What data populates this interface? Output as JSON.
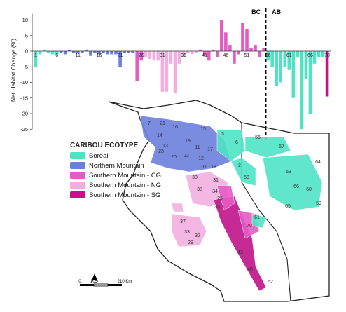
{
  "chart_data": {
    "type": "bar",
    "ylabel": "Net Habitat Change (%)",
    "ylim": [
      -25,
      12
    ],
    "yticks": [
      "10",
      "5",
      "0",
      "-5",
      "-10",
      "-15",
      "-20",
      "-25"
    ],
    "xtick_labels": [
      "1",
      "6",
      "11",
      "16",
      "21",
      "26",
      "31",
      "36",
      "41",
      "46",
      "51",
      "56",
      "61",
      "66",
      "70"
    ],
    "divider_labels": {
      "left": "BC",
      "right": "AB"
    },
    "categories": [
      1,
      2,
      3,
      4,
      5,
      6,
      7,
      8,
      9,
      10,
      11,
      12,
      13,
      14,
      15,
      16,
      17,
      18,
      19,
      20,
      21,
      22,
      23,
      24,
      25,
      26,
      27,
      28,
      29,
      30,
      31,
      32,
      33,
      34,
      35,
      36,
      37,
      38,
      39,
      40,
      41,
      42,
      43,
      44,
      45,
      46,
      47,
      48,
      49,
      50,
      51,
      52,
      53,
      54,
      55,
      56,
      57,
      58,
      59,
      60,
      61,
      62,
      63,
      64,
      65,
      66,
      67,
      68,
      69,
      70
    ],
    "values": [
      -5,
      -1,
      0.5,
      -0.5,
      -1,
      -1,
      -0.5,
      -1,
      0.5,
      -0.5,
      -0.5,
      -0.5,
      0.5,
      -1.5,
      -0.5,
      -1,
      -0.5,
      -1,
      -1,
      -1,
      -5,
      -0.5,
      -0.5,
      -0.5,
      -9.5,
      -3,
      -2,
      -2.5,
      -3,
      -3,
      -13,
      -13,
      -4,
      -13.5,
      -4,
      -2,
      -0.5,
      -1,
      -0.5,
      0.5,
      -1.5,
      -3,
      0.5,
      -2,
      10,
      6,
      2,
      -4,
      -1,
      9,
      7,
      1,
      2,
      -2,
      1,
      -3,
      -5,
      -11,
      -10,
      -5,
      -6,
      -15,
      -2,
      -25,
      -9,
      -20,
      -4,
      -2,
      -2,
      -14.5
    ],
    "ecotype": [
      "B",
      "B",
      "B",
      "B",
      "B",
      "B",
      "NM",
      "NM",
      "NM",
      "NM",
      "NM",
      "NM",
      "NM",
      "NM",
      "NM",
      "NM",
      "NM",
      "NM",
      "NM",
      "NM",
      "NM",
      "NM",
      "NM",
      "NM",
      "SCG",
      "SCG",
      "SNG",
      "SNG",
      "SNG",
      "SNG",
      "SNG",
      "SNG",
      "SNG",
      "SNG",
      "SNG",
      "SNG",
      "SNG",
      "SNG",
      "SNG",
      "SCG",
      "SCG",
      "SCG",
      "SCG",
      "SCG",
      "SCG",
      "SCG",
      "SCG",
      "SCG",
      "SCG",
      "SCG",
      "SCG",
      "SCG",
      "SCG",
      "SCG",
      "SCG",
      "B",
      "B",
      "B",
      "B",
      "B",
      "B",
      "B",
      "B",
      "B",
      "B",
      "B",
      "B",
      "B",
      "B",
      "SSG"
    ],
    "colors": {
      "B": "#4fe3c4",
      "NM": "#6a7fdc",
      "SCG": "#e65bc2",
      "SNG": "#f3aee0",
      "SSG": "#c0148a"
    }
  },
  "legend": {
    "title": "CARIBOU ECOTYPE",
    "items": [
      {
        "label": "Boreal",
        "color": "#4fe3c4"
      },
      {
        "label": "Northern Mountain",
        "color": "#6a7fdc"
      },
      {
        "label": "Southern Mountain - CG",
        "color": "#e65bc2"
      },
      {
        "label": "Southern Mountain - NG",
        "color": "#f3aee0"
      },
      {
        "label": "Southern Mountain - SG",
        "color": "#c0148a"
      }
    ]
  },
  "map": {
    "labels": [
      {
        "n": "7"
      },
      {
        "n": "21"
      },
      {
        "n": "16"
      },
      {
        "n": "14"
      },
      {
        "n": "13"
      },
      {
        "n": "19"
      },
      {
        "n": "23"
      },
      {
        "n": "20"
      },
      {
        "n": "17"
      },
      {
        "n": "11"
      },
      {
        "n": "12"
      },
      {
        "n": "10"
      },
      {
        "n": "18"
      },
      {
        "n": "22"
      },
      {
        "n": "15"
      },
      {
        "n": "3"
      },
      {
        "n": "6"
      },
      {
        "n": "56"
      },
      {
        "n": "57"
      },
      {
        "n": "2"
      },
      {
        "n": "58"
      },
      {
        "n": "63"
      },
      {
        "n": "64"
      },
      {
        "n": "66"
      },
      {
        "n": "60"
      },
      {
        "n": "65"
      },
      {
        "n": "59"
      },
      {
        "n": "30"
      },
      {
        "n": "31"
      },
      {
        "n": "38"
      },
      {
        "n": "34"
      },
      {
        "n": "25"
      },
      {
        "n": "35"
      },
      {
        "n": "37"
      },
      {
        "n": "33"
      },
      {
        "n": "29"
      },
      {
        "n": "32"
      },
      {
        "n": "70"
      },
      {
        "n": "61"
      },
      {
        "n": "43"
      },
      {
        "n": "48"
      },
      {
        "n": "52"
      }
    ],
    "scale": {
      "ticks": [
        "0",
        "105",
        "210 Km"
      ]
    },
    "north_label": "N"
  }
}
